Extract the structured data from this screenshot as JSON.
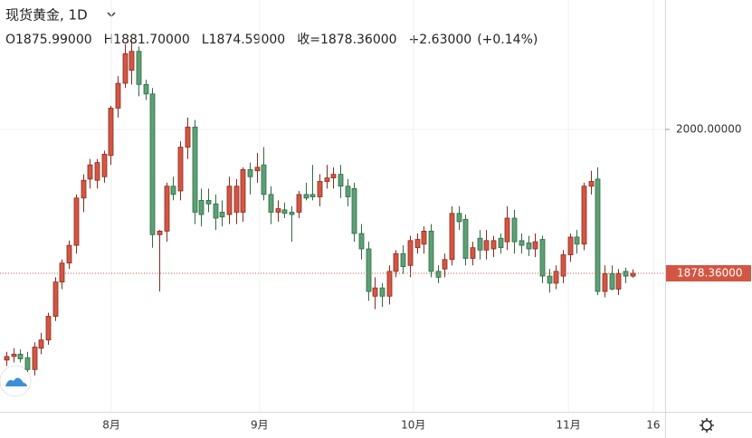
{
  "chart_data": {
    "type": "candlestick",
    "title": "现货黄金, 1D",
    "header_values": [
      "O1875.99000",
      "H1881.70000",
      "L1874.59000",
      "收=1878.36000",
      "+2.63000",
      "(+0.14%)"
    ],
    "up_color": "#d35643",
    "down_color": "#5ca174",
    "open": [
      1805,
      1808,
      1810,
      1807,
      1797,
      1815,
      1822,
      1842,
      1871,
      1887,
      1902,
      1942,
      1958,
      1957,
      1960,
      1978,
      2018,
      2039,
      2050,
      2066,
      2038,
      2030,
      1911,
      1914,
      1952,
      1948,
      1985,
      2002,
      1940,
      1940,
      1937,
      1930,
      1928,
      1930,
      1930,
      1966,
      1965,
      1970,
      1945,
      1930,
      1932,
      1930,
      1930,
      1945,
      1945,
      1943,
      1956,
      1959,
      1962,
      1952,
      1950,
      1912,
      1899,
      1859,
      1866,
      1859,
      1880,
      1895,
      1885,
      1900,
      1903,
      1914,
      1880,
      1882,
      1890,
      1929,
      1924,
      1891,
      1908,
      1898,
      1899,
      1908,
      1905,
      1925,
      1906,
      1904,
      1899,
      1907,
      1876,
      1870,
      1876,
      1894,
      1909,
      1903,
      1952,
      1958,
      1863,
      1878,
      1865,
      1880,
      1875.99
    ],
    "high": [
      1812,
      1815,
      1814,
      1812,
      1820,
      1828,
      1845,
      1875,
      1890,
      1906,
      1945,
      1962,
      1975,
      1975,
      1982,
      2020,
      2045,
      2072,
      2075,
      2070,
      2042,
      2035,
      1915,
      1955,
      1960,
      1990,
      2010,
      2008,
      1950,
      1950,
      1945,
      1940,
      1960,
      1958,
      1968,
      1972,
      1980,
      1985,
      1952,
      1940,
      1938,
      1935,
      1948,
      1955,
      1970,
      1962,
      1970,
      1968,
      1970,
      1958,
      1955,
      1920,
      1905,
      1875,
      1870,
      1885,
      1898,
      1902,
      1910,
      1912,
      1918,
      1920,
      1885,
      1895,
      1935,
      1935,
      1928,
      1905,
      1915,
      1915,
      1910,
      1912,
      1935,
      1932,
      1912,
      1910,
      1912,
      1910,
      1882,
      1885,
      1898,
      1912,
      1915,
      1955,
      1965,
      1968,
      1885,
      1885,
      1882,
      1883,
      1881.7
    ],
    "low": [
      1800,
      1803,
      1803,
      1795,
      1792,
      1810,
      1818,
      1838,
      1865,
      1882,
      1895,
      1930,
      1950,
      1950,
      1955,
      1970,
      2010,
      2035,
      2038,
      2028,
      2025,
      1900,
      1863,
      1905,
      1940,
      1940,
      1975,
      1920,
      1918,
      1930,
      1915,
      1918,
      1920,
      1920,
      1922,
      1945,
      1955,
      1940,
      1920,
      1922,
      1925,
      1905,
      1925,
      1940,
      1940,
      1935,
      1950,
      1950,
      1942,
      1935,
      1905,
      1890,
      1855,
      1848,
      1850,
      1852,
      1875,
      1878,
      1875,
      1895,
      1895,
      1875,
      1870,
      1875,
      1885,
      1915,
      1885,
      1885,
      1890,
      1890,
      1892,
      1895,
      1898,
      1895,
      1895,
      1893,
      1892,
      1870,
      1862,
      1865,
      1870,
      1888,
      1895,
      1898,
      1945,
      1860,
      1858,
      1864,
      1860,
      1870,
      1874.59
    ],
    "close": [
      1808,
      1810,
      1806,
      1797,
      1816,
      1822,
      1842,
      1871,
      1887,
      1902,
      1942,
      1957,
      1970,
      1972,
      1979,
      2018,
      2039,
      2064,
      2066,
      2038,
      2030,
      1911,
      1914,
      1952,
      1945,
      1985,
      2002,
      1930,
      1928,
      1937,
      1925,
      1926,
      1952,
      1952,
      1966,
      1960,
      1968,
      1945,
      1930,
      1933,
      1929,
      1928,
      1945,
      1942,
      1943,
      1956,
      1959,
      1962,
      1952,
      1943,
      1912,
      1899,
      1863,
      1866,
      1859,
      1880,
      1895,
      1884,
      1906,
      1907,
      1914,
      1880,
      1875,
      1890,
      1929,
      1922,
      1891,
      1900,
      1898,
      1906,
      1906,
      1900,
      1925,
      1905,
      1902,
      1899,
      1905,
      1876,
      1870,
      1880,
      1894,
      1909,
      1903,
      1952,
      1956,
      1863,
      1878,
      1865,
      1878,
      1876,
      1878.36
    ],
    "xlim": [
      -0.91,
      94.7
    ],
    "xticks": [
      {
        "value": 15.1,
        "label": "8月"
      },
      {
        "value": 36.4,
        "label": "9月"
      },
      {
        "value": 58.5,
        "label": "10月"
      },
      {
        "value": 80.8,
        "label": "11月"
      },
      {
        "value": 93,
        "label": "16"
      }
    ],
    "ylim": [
      1761.3,
      2109.4
    ],
    "yticks": [
      {
        "value": 2000,
        "label": "2000.00000"
      }
    ],
    "last_price": {
      "value": 1878.36,
      "label": "1878.36000"
    },
    "grid": true
  }
}
